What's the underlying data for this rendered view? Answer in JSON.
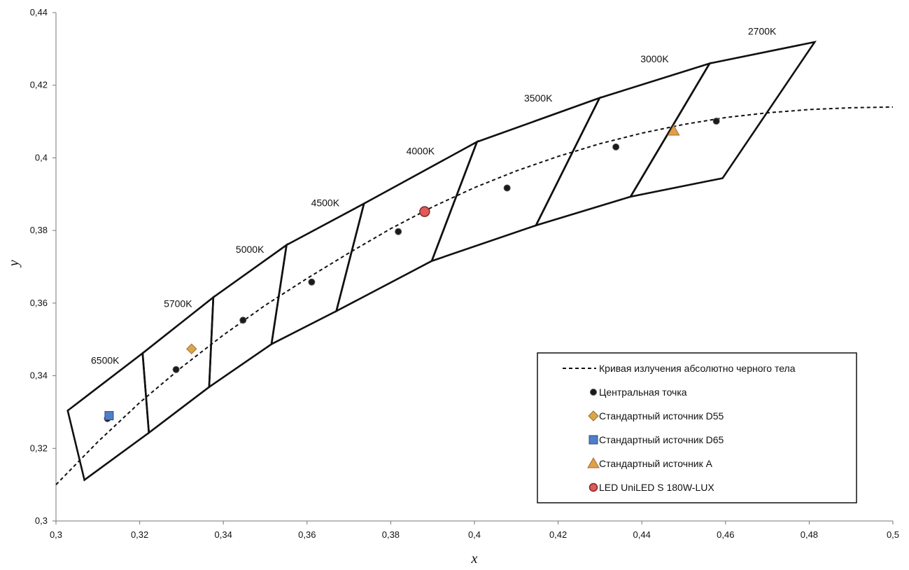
{
  "chart_data": {
    "type": "scatter",
    "title": "",
    "xlabel": "x",
    "ylabel": "y",
    "xlim": [
      0.3,
      0.5
    ],
    "ylim": [
      0.3,
      0.44
    ],
    "x_ticks": [
      "0,3",
      "0,32",
      "0,34",
      "0,36",
      "0,38",
      "0,4",
      "0,42",
      "0,44",
      "0,46",
      "0,48",
      "0,5"
    ],
    "y_ticks": [
      "0,3",
      "0,32",
      "0,34",
      "0,36",
      "0,38",
      "0,4",
      "0,42",
      "0,44"
    ],
    "grid": false,
    "legend_position": "bottom-right",
    "planckian_locus": {
      "name": "Кривая излучения абсолютно черного тела",
      "style": "dashed",
      "x": [
        0.3,
        0.31,
        0.32,
        0.33,
        0.34,
        0.35,
        0.36,
        0.37,
        0.38,
        0.39,
        0.4,
        0.41,
        0.42,
        0.43,
        0.44,
        0.45,
        0.46,
        0.47,
        0.48,
        0.49,
        0.5
      ],
      "y": [
        0.31,
        0.3218,
        0.3326,
        0.3423,
        0.3512,
        0.3594,
        0.3668,
        0.3738,
        0.3805,
        0.3865,
        0.3918,
        0.3964,
        0.4004,
        0.4039,
        0.4068,
        0.4092,
        0.4111,
        0.4124,
        0.4133,
        0.4138,
        0.414
      ]
    },
    "quadrangles": [
      {
        "label": "6500K",
        "corners": [
          [
            0.3028,
            0.3304
          ],
          [
            0.3207,
            0.3462
          ],
          [
            0.3222,
            0.3243
          ],
          [
            0.3068,
            0.3113
          ]
        ]
      },
      {
        "label": "5700K",
        "corners": [
          [
            0.3207,
            0.3462
          ],
          [
            0.3376,
            0.3616
          ],
          [
            0.3366,
            0.3369
          ],
          [
            0.3222,
            0.3243
          ]
        ]
      },
      {
        "label": "5000K",
        "corners": [
          [
            0.3376,
            0.3616
          ],
          [
            0.3551,
            0.376
          ],
          [
            0.3515,
            0.3487
          ],
          [
            0.3366,
            0.3369
          ]
        ]
      },
      {
        "label": "4500K",
        "corners": [
          [
            0.3551,
            0.376
          ],
          [
            0.3736,
            0.3874
          ],
          [
            0.367,
            0.3578
          ],
          [
            0.3515,
            0.3487
          ]
        ]
      },
      {
        "label": "4000K",
        "corners": [
          [
            0.3736,
            0.3874
          ],
          [
            0.4006,
            0.4044
          ],
          [
            0.3898,
            0.3716
          ],
          [
            0.367,
            0.3578
          ]
        ]
      },
      {
        "label": "3500K",
        "corners": [
          [
            0.4006,
            0.4044
          ],
          [
            0.4299,
            0.4165
          ],
          [
            0.4147,
            0.3814
          ],
          [
            0.3898,
            0.3716
          ]
        ]
      },
      {
        "label": "3000K",
        "corners": [
          [
            0.4299,
            0.4165
          ],
          [
            0.4562,
            0.426
          ],
          [
            0.4373,
            0.3893
          ],
          [
            0.4147,
            0.3814
          ]
        ]
      },
      {
        "label": "2700K",
        "corners": [
          [
            0.4562,
            0.426
          ],
          [
            0.4813,
            0.4319
          ],
          [
            0.4593,
            0.3944
          ],
          [
            0.4373,
            0.3893
          ]
        ]
      }
    ],
    "series": [
      {
        "name": "Центральная точка",
        "marker": "circle",
        "color": "#1a1a1a",
        "x": [
          0.3123,
          0.3287,
          0.3447,
          0.3611,
          0.3818,
          0.4078,
          0.4338,
          0.4578
        ],
        "y": [
          0.3282,
          0.3417,
          0.3553,
          0.3658,
          0.3797,
          0.3917,
          0.403,
          0.4101
        ]
      },
      {
        "name": "Стандартный источник D55",
        "marker": "diamond",
        "color": "#d6a84a",
        "x": [
          0.3324
        ],
        "y": [
          0.3474
        ]
      },
      {
        "name": "Стандартный источник D65",
        "marker": "square",
        "color": "#4f7fc9",
        "x": [
          0.3127
        ],
        "y": [
          0.329
        ]
      },
      {
        "name": "Стандартный источник A",
        "marker": "triangle",
        "color": "#e0a04a",
        "x": [
          0.4476
        ],
        "y": [
          0.4074
        ]
      },
      {
        "name": "LED UniLED S 180W-LUX",
        "marker": "circle",
        "color": "#e05a5a",
        "x": [
          0.3881
        ],
        "y": [
          0.3852
        ]
      }
    ]
  }
}
